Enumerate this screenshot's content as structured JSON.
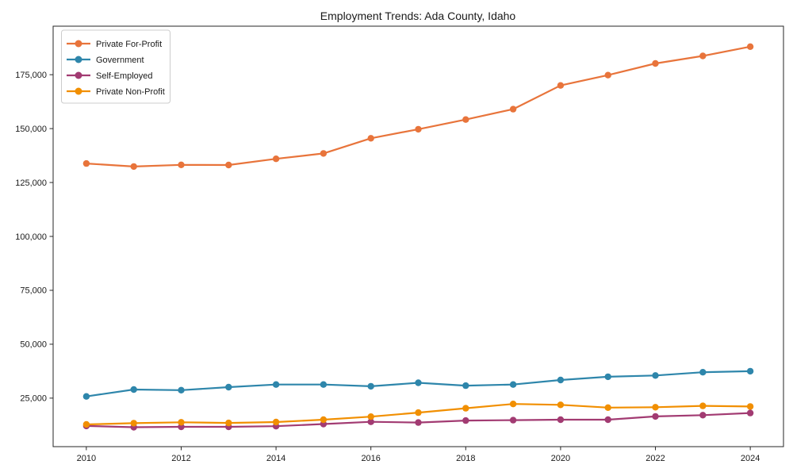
{
  "figure": {
    "background": "#ffffff"
  },
  "chart_data": {
    "type": "line",
    "title": "Employment Trends: Ada County, Idaho",
    "xlabel": "",
    "ylabel": "",
    "x": [
      2010,
      2011,
      2012,
      2013,
      2014,
      2015,
      2016,
      2017,
      2018,
      2019,
      2020,
      2021,
      2022,
      2023,
      2024
    ],
    "series": [
      {
        "name": "Private For-Profit",
        "color": "#e8743b",
        "values": [
          133800,
          132400,
          133200,
          133100,
          136000,
          138500,
          145500,
          149700,
          154200,
          159000,
          170000,
          174800,
          180200,
          183700,
          188000
        ]
      },
      {
        "name": "Government",
        "color": "#2e86ab",
        "values": [
          25800,
          29000,
          28700,
          30100,
          31300,
          31300,
          30500,
          32100,
          30800,
          31300,
          33400,
          34900,
          35500,
          37000,
          37500
        ]
      },
      {
        "name": "Self-Employed",
        "color": "#a23b72",
        "values": [
          12100,
          11500,
          11700,
          11700,
          12000,
          13000,
          14000,
          13700,
          14600,
          14800,
          15000,
          15000,
          16500,
          17100,
          18100
        ]
      },
      {
        "name": "Private Non-Profit",
        "color": "#f18f01",
        "values": [
          12800,
          13400,
          13800,
          13500,
          13900,
          15000,
          16400,
          18300,
          20300,
          22300,
          21900,
          20600,
          20800,
          21400,
          21100
        ]
      }
    ],
    "xticks": [
      2010,
      2012,
      2014,
      2016,
      2018,
      2020,
      2022,
      2024
    ],
    "yticks": [
      25000,
      50000,
      75000,
      100000,
      125000,
      150000,
      175000
    ],
    "xlim": [
      2009.3,
      2024.7
    ],
    "ylim": [
      2500,
      197500
    ],
    "grid": false,
    "legend_position": "upper-left",
    "axis_color": "#262626",
    "legend_border_color": "#cccccc",
    "legend_background": "#ffffff"
  }
}
